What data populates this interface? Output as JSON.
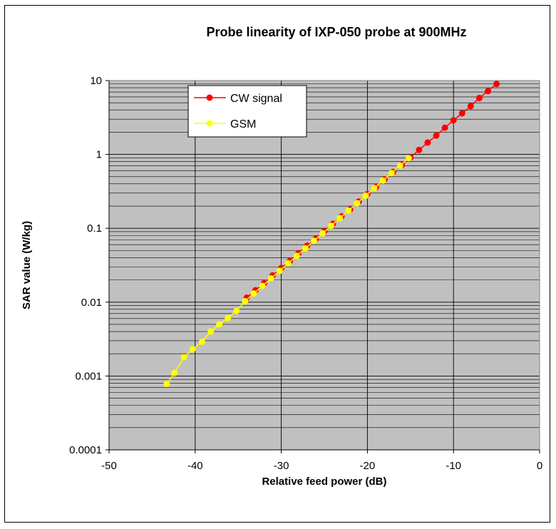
{
  "chart_data": {
    "type": "scatter",
    "title": "Probe linearity of IXP-050 probe at 900MHz",
    "xlabel": "Relative feed power (dB)",
    "ylabel": "SAR value (W/kg)",
    "xlim": [
      -50,
      0
    ],
    "ylim": [
      0.0001,
      10
    ],
    "y_scale": "log",
    "x_ticks": [
      "-50",
      "-40",
      "-30",
      "-20",
      "-10",
      "0"
    ],
    "y_ticks": [
      "0.0001",
      "0.001",
      "0.01",
      "0.1",
      "1",
      "10"
    ],
    "grid": true,
    "plot_background": "#c0c0c0",
    "legend_position": "upper-left",
    "series": [
      {
        "name": "CW signal",
        "color": "#ff0000",
        "marker": "circle",
        "points": [
          [
            -34,
            0.0115
          ],
          [
            -33,
            0.0145
          ],
          [
            -32,
            0.018
          ],
          [
            -31,
            0.023
          ],
          [
            -30,
            0.029
          ],
          [
            -29,
            0.036
          ],
          [
            -28,
            0.046
          ],
          [
            -27,
            0.058
          ],
          [
            -26,
            0.072
          ],
          [
            -25,
            0.091
          ],
          [
            -24,
            0.115
          ],
          [
            -23,
            0.145
          ],
          [
            -22,
            0.18
          ],
          [
            -21,
            0.23
          ],
          [
            -20,
            0.29
          ],
          [
            -19,
            0.36
          ],
          [
            -18,
            0.46
          ],
          [
            -17,
            0.58
          ],
          [
            -16,
            0.72
          ],
          [
            -15,
            0.91
          ],
          [
            -14,
            1.15
          ],
          [
            -13,
            1.45
          ],
          [
            -12,
            1.8
          ],
          [
            -11,
            2.3
          ],
          [
            -10,
            2.9
          ],
          [
            -9,
            3.6
          ],
          [
            -8,
            4.5
          ],
          [
            -7,
            5.8
          ],
          [
            -6,
            7.2
          ],
          [
            -5,
            9.0
          ]
        ]
      },
      {
        "name": "GSM",
        "color": "#ffff00",
        "marker": "circle",
        "points": [
          [
            -43.3,
            0.00078
          ],
          [
            -42.4,
            0.0011
          ],
          [
            -41.3,
            0.0018
          ],
          [
            -40.3,
            0.0023
          ],
          [
            -39.2,
            0.0029
          ],
          [
            -38.2,
            0.004
          ],
          [
            -37.2,
            0.005
          ],
          [
            -36.2,
            0.0061
          ],
          [
            -35.2,
            0.0076
          ],
          [
            -34.2,
            0.0103
          ],
          [
            -33.2,
            0.0131
          ],
          [
            -32.2,
            0.0166
          ],
          [
            -31.2,
            0.0209
          ],
          [
            -30.2,
            0.0265
          ],
          [
            -29.2,
            0.0335
          ],
          [
            -28.2,
            0.0423
          ],
          [
            -27.2,
            0.0535
          ],
          [
            -26.2,
            0.0677
          ],
          [
            -25.2,
            0.0855
          ],
          [
            -24.2,
            0.108
          ],
          [
            -23.2,
            0.137
          ],
          [
            -22.2,
            0.173
          ],
          [
            -21.2,
            0.218
          ],
          [
            -20.2,
            0.276
          ],
          [
            -19.2,
            0.349
          ],
          [
            -18.2,
            0.441
          ],
          [
            -17.2,
            0.557
          ],
          [
            -16.2,
            0.704
          ],
          [
            -15.2,
            0.89
          ]
        ]
      }
    ]
  }
}
